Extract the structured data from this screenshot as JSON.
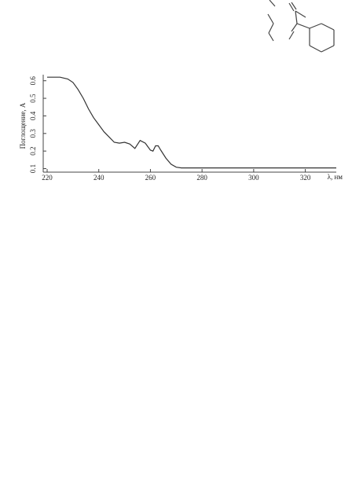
{
  "chart_data": {
    "type": "line",
    "x_label": "λ, нм",
    "y_label": "Поглощение, А",
    "x": [
      220,
      225,
      228,
      230,
      232,
      234,
      236,
      238,
      240,
      242,
      244,
      246,
      248,
      250,
      252,
      254,
      256,
      258,
      260,
      261,
      262,
      263,
      264,
      266,
      268,
      270,
      272,
      280,
      290,
      300,
      310,
      320,
      332
    ],
    "values": [
      0.62,
      0.62,
      0.61,
      0.59,
      0.55,
      0.5,
      0.44,
      0.39,
      0.35,
      0.31,
      0.28,
      0.25,
      0.245,
      0.25,
      0.24,
      0.215,
      0.26,
      0.245,
      0.205,
      0.2,
      0.23,
      0.23,
      0.205,
      0.16,
      0.125,
      0.108,
      0.104,
      0.104,
      0.104,
      0.104,
      0.104,
      0.104,
      0.104
    ],
    "color": "#333333",
    "xlim": [
      220,
      332
    ],
    "ylim": [
      0.08,
      0.63
    ],
    "xticks": [
      220,
      240,
      260,
      280,
      300,
      320
    ],
    "yticks": [
      0.1,
      0.2,
      0.3,
      0.4,
      0.5,
      0.6
    ]
  }
}
